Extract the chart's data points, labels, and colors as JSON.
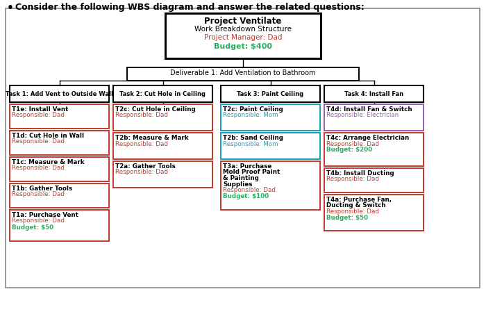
{
  "title_line1": "Project Ventilate",
  "title_line2": "Work Breakdown Structure",
  "title_line3": "Project Manager: Dad",
  "title_line4": "Budget: $400",
  "deliverable": "Deliverable 1: Add Ventilation to Bathroom",
  "tasks": [
    "Task 1: Add Vent to Outside Wall",
    "Task 2: Cut Hole in Ceiling",
    "Task 3: Paint Ceiling",
    "Task 4: Install Fan"
  ],
  "header_text": "Consider the following WBS diagram and answer the related questions:",
  "task1_boxes": [
    {
      "line1": "T1e: Install Vent",
      "line2": "Responsible: Dad",
      "budget": null,
      "border": "red",
      "resp_color": "red"
    },
    {
      "line1": "T1d: Cut Hole in Wall",
      "line2": "Responsible: Dad",
      "budget": null,
      "border": "red",
      "resp_color": "red"
    },
    {
      "line1": "T1c: Measure & Mark",
      "line2": "Responsible: Dad",
      "budget": null,
      "border": "red",
      "resp_color": "red"
    },
    {
      "line1": "T1b: Gather Tools",
      "line2": "Responsible: Dad",
      "budget": null,
      "border": "red",
      "resp_color": "red"
    },
    {
      "line1": "T1a: Purchase Vent",
      "line2": "Responsible: Dad",
      "budget": "Budget: $50",
      "border": "red",
      "resp_color": "red"
    }
  ],
  "task2_boxes": [
    {
      "line1": "T2c: Cut Hole in Ceiling",
      "line2": "Responsible: Dad",
      "budget": null,
      "border": "red",
      "resp_color": "red"
    },
    {
      "line1": "T2b: Measure & Mark",
      "line2": "Responsible: Dad",
      "budget": null,
      "border": "red",
      "resp_color": "red"
    },
    {
      "line1": "T2a: Gather Tools",
      "line2": "Responsible: Dad",
      "budget": null,
      "border": "red",
      "resp_color": "red"
    }
  ],
  "task3_boxes": [
    {
      "line1": "T2c: Paint Ceiling",
      "line2": "Responsible: Mom",
      "budget": null,
      "border": "cyan",
      "resp_color": "cyan"
    },
    {
      "line1": "T2b: Sand Ceiling",
      "line2": "Responsible: Mom",
      "budget": null,
      "border": "cyan",
      "resp_color": "cyan"
    },
    {
      "line1": "T3a: Purchase\nMold Proof Paint\n& Painting\nSupplies",
      "line2": "Responsible: Dad",
      "budget": "Budget: $100",
      "border": "red",
      "resp_color": "red"
    }
  ],
  "task4_boxes": [
    {
      "line1": "T4d: Install Fan & Switch",
      "line2": "Responsible: Electrician",
      "budget": null,
      "border": "purple",
      "resp_color": "purple"
    },
    {
      "line1": "T4c: Arrange Electrician",
      "line2": "Responsible: Dad",
      "budget": "Budget: $200",
      "border": "red",
      "resp_color": "red"
    },
    {
      "line1": "T4b: Install Ducting",
      "line2": "Responsible: Dad",
      "budget": null,
      "border": "red",
      "resp_color": "red"
    },
    {
      "line1": "T4a: Purchase Fan,\nDucting & Switch",
      "line2": "Responsible: Dad",
      "budget": "Budget: $50",
      "border": "red",
      "resp_color": "red"
    }
  ],
  "colors": {
    "red": "#c0392b",
    "cyan": "#1a9fba",
    "purple": "#9b59b6",
    "green": "#27ae60",
    "black": "#000000",
    "border_red": "#c0392b",
    "border_cyan": "#1a9fba",
    "border_purple": "#9b59b6",
    "border_black": "#000000",
    "bg": "#ffffff"
  }
}
